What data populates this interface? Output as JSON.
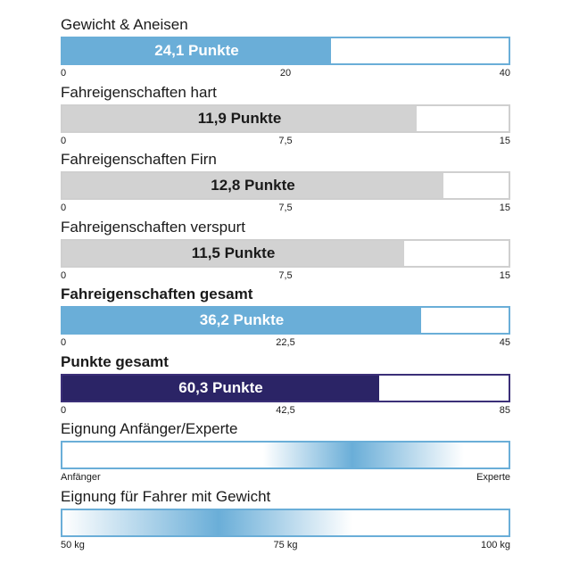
{
  "chart_data": [
    {
      "type": "bar",
      "title": "Gewicht & Aneisen",
      "value": 24.1,
      "value_label": "24,1 Punkte",
      "ylim": [
        0,
        40
      ],
      "ticks": [
        "0",
        "20",
        "40"
      ],
      "fill_color": "#6aaed8",
      "text_color": "#ffffff",
      "style": "blue"
    },
    {
      "type": "bar",
      "title": "Fahreigenschaften hart",
      "value": 11.9,
      "value_label": "11,9 Punkte",
      "ylim": [
        0,
        15
      ],
      "ticks": [
        "0",
        "7,5",
        "15"
      ],
      "fill_color": "#d2d2d2",
      "text_color": "#1a1a1a",
      "style": "gray"
    },
    {
      "type": "bar",
      "title": "Fahreigenschaften Firn",
      "value": 12.8,
      "value_label": "12,8 Punkte",
      "ylim": [
        0,
        15
      ],
      "ticks": [
        "0",
        "7,5",
        "15"
      ],
      "fill_color": "#d2d2d2",
      "text_color": "#1a1a1a",
      "style": "gray"
    },
    {
      "type": "bar",
      "title": "Fahreigenschaften verspurt",
      "value": 11.5,
      "value_label": "11,5 Punkte",
      "ylim": [
        0,
        15
      ],
      "ticks": [
        "0",
        "7,5",
        "15"
      ],
      "fill_color": "#d2d2d2",
      "text_color": "#1a1a1a",
      "style": "gray"
    },
    {
      "type": "bar",
      "title": "Fahreigenschaften gesamt",
      "value": 36.2,
      "value_label": "36,2 Punkte",
      "ylim": [
        0,
        45
      ],
      "ticks": [
        "0",
        "22,5",
        "45"
      ],
      "fill_color": "#6aaed8",
      "text_color": "#ffffff",
      "style": "blue",
      "bold_title": true
    },
    {
      "type": "bar",
      "title": "Punkte gesamt",
      "value": 60.3,
      "value_label": "60,3 Punkte",
      "ylim": [
        0,
        85
      ],
      "ticks": [
        "0",
        "42,5",
        "85"
      ],
      "fill_color": "#2b2466",
      "text_color": "#ffffff",
      "style": "navy",
      "bold_title": true
    }
  ],
  "scales": [
    {
      "title": "Eignung Anfänger/Experte",
      "ticks": [
        "Anfänger",
        "",
        "Experte"
      ],
      "range": [
        0.45,
        0.9
      ],
      "peak": 0.65,
      "color": "#6aaed8"
    },
    {
      "title": "Eignung für Fahrer mit Gewicht",
      "ticks": [
        "50 kg",
        "75 kg",
        "100 kg"
      ],
      "range": [
        0.0,
        0.65
      ],
      "peak": 0.35,
      "color": "#6aaed8"
    }
  ]
}
